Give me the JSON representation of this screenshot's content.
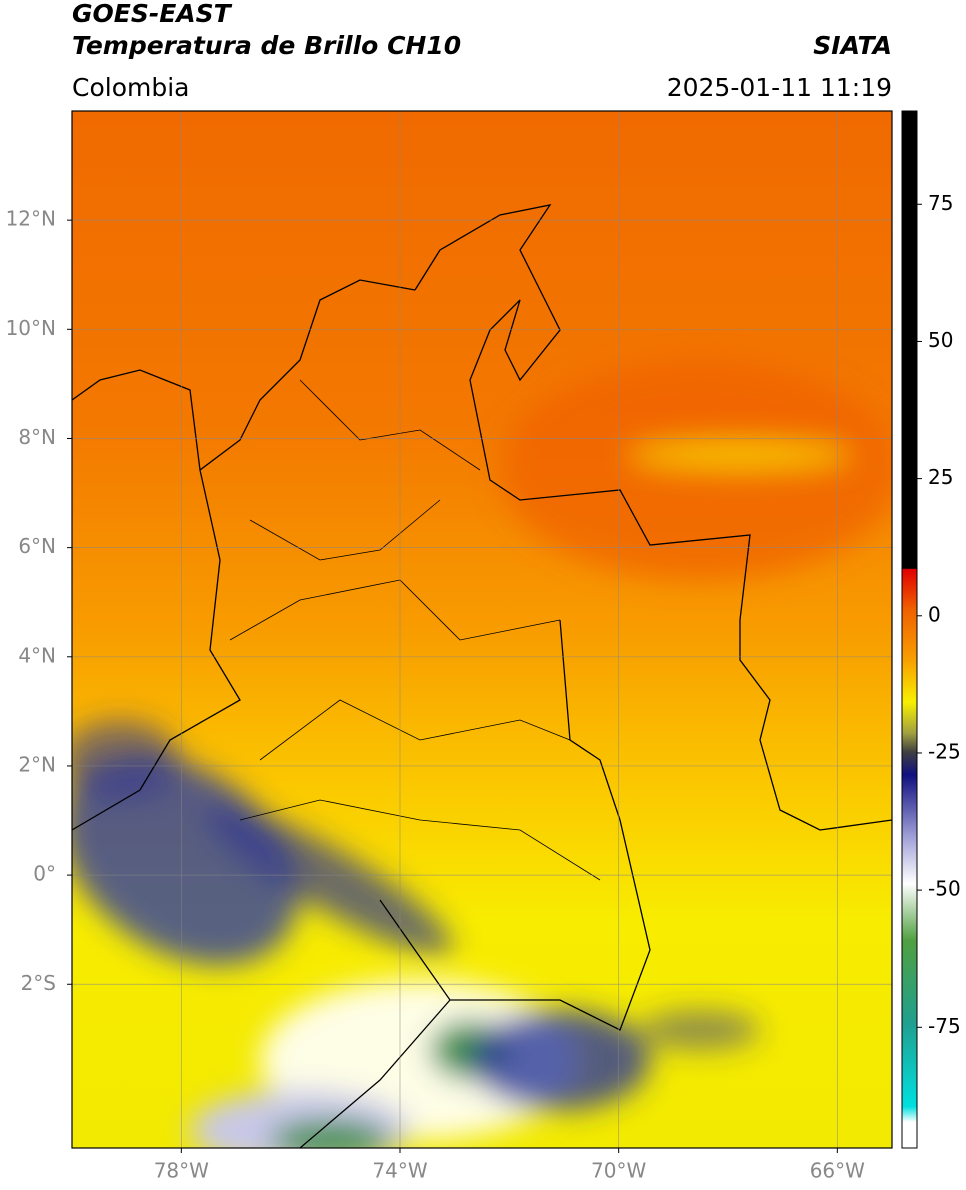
{
  "header": {
    "satellite": "GOES-EAST",
    "product": "Temperatura de Brillo CH10",
    "source": "SIATA",
    "region": "Colombia",
    "timestamp": "2025-01-11 11:19"
  },
  "map": {
    "lonlim": [
      -80,
      -65
    ],
    "latlim": [
      -5,
      14
    ],
    "lonticks": [
      {
        "value": -78,
        "label": "78°W"
      },
      {
        "value": -74,
        "label": "74°W"
      },
      {
        "value": -70,
        "label": "70°W"
      },
      {
        "value": -66,
        "label": "66°W"
      }
    ],
    "latticks": [
      {
        "value": 12,
        "label": "12°N"
      },
      {
        "value": 10,
        "label": "10°N"
      },
      {
        "value": 8,
        "label": "8°N"
      },
      {
        "value": 6,
        "label": "6°N"
      },
      {
        "value": 4,
        "label": "4°N"
      },
      {
        "value": 2,
        "label": "2°N"
      },
      {
        "value": 0,
        "label": "0°"
      },
      {
        "value": -2,
        "label": "2°S"
      }
    ],
    "grid": true
  },
  "colorbar": {
    "lim": [
      -97,
      92
    ],
    "ticks": [
      75,
      50,
      25,
      0,
      -25,
      -50,
      -75
    ]
  }
}
